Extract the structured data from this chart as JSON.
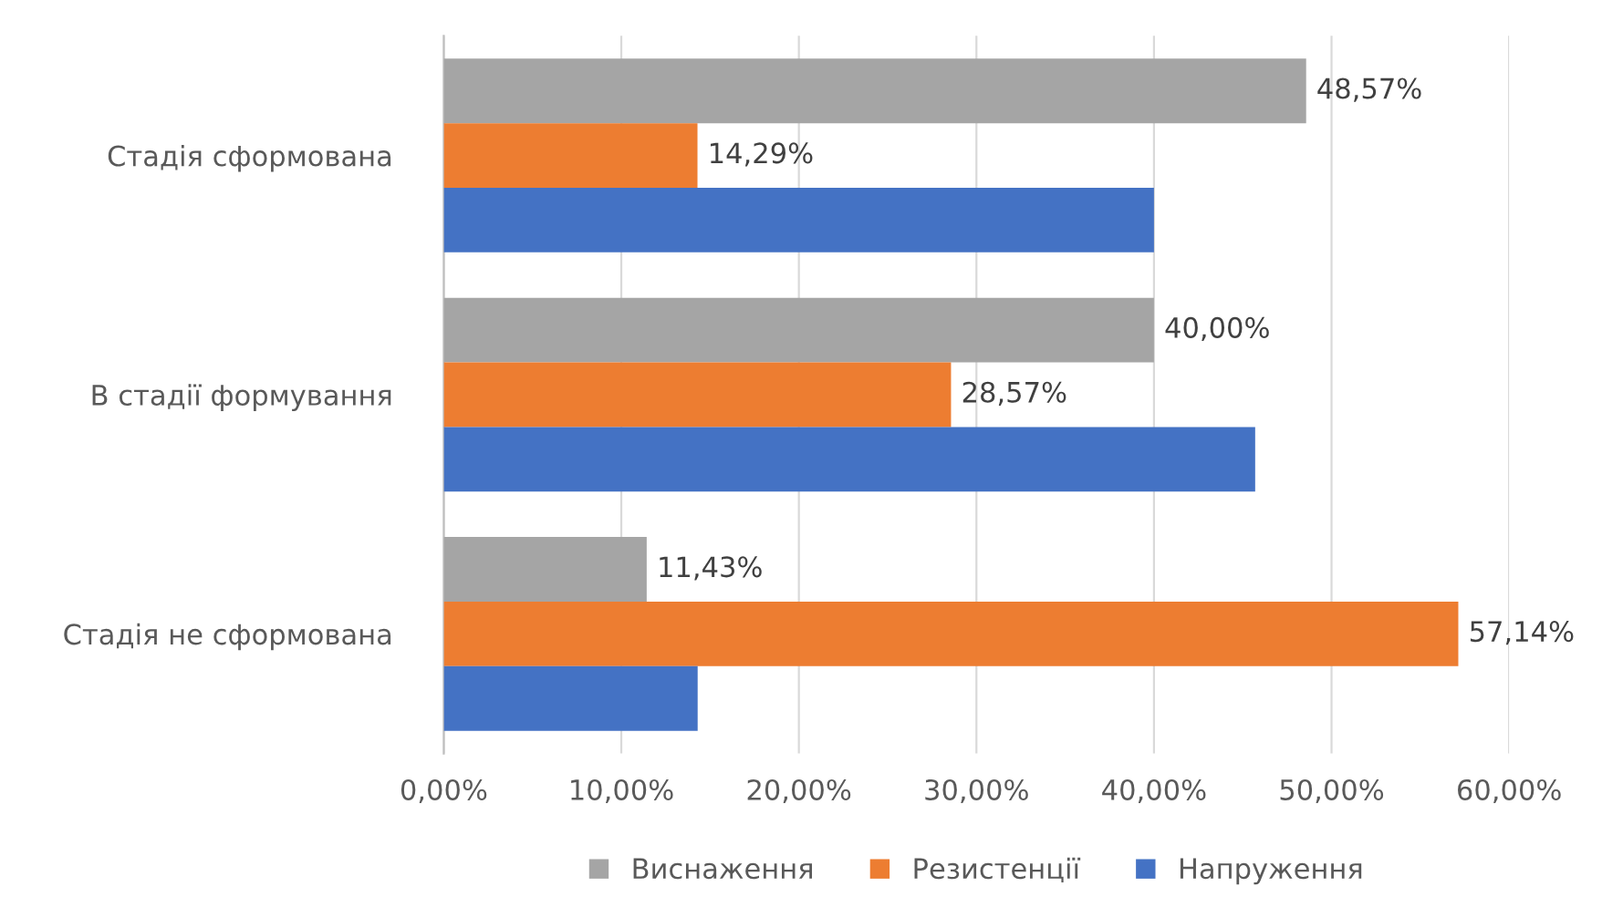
{
  "chart_data": {
    "type": "bar",
    "orientation": "horizontal",
    "categories": [
      "Стадія сформована",
      "В стадії формування",
      "Стадія не сформована"
    ],
    "series": [
      {
        "name": "Виснаження",
        "color": "#a5a5a5",
        "values": [
          48.57,
          40.0,
          11.43
        ],
        "value_labels": [
          "48,57%",
          "40,00%",
          "11,43%"
        ]
      },
      {
        "name": "Резистенції",
        "color": "#ed7d31",
        "values": [
          14.29,
          28.57,
          57.14
        ],
        "value_labels": [
          "14,29%",
          "28,57%",
          "57,14%"
        ]
      },
      {
        "name": "Напруження",
        "color": "#4472c4",
        "values": [
          40.0,
          45.7,
          14.3
        ]
      }
    ],
    "xlim": [
      0,
      60
    ],
    "xticks": [
      {
        "value": 0,
        "label": "0,00%"
      },
      {
        "value": 10,
        "label": "10,00%"
      },
      {
        "value": 20,
        "label": "20,00%"
      },
      {
        "value": 30,
        "label": "30,00%"
      },
      {
        "value": 40,
        "label": "40,00%"
      },
      {
        "value": 50,
        "label": "50,00%"
      },
      {
        "value": 60,
        "label": "60,00%"
      }
    ],
    "grid": "x",
    "legend": "bottom"
  }
}
